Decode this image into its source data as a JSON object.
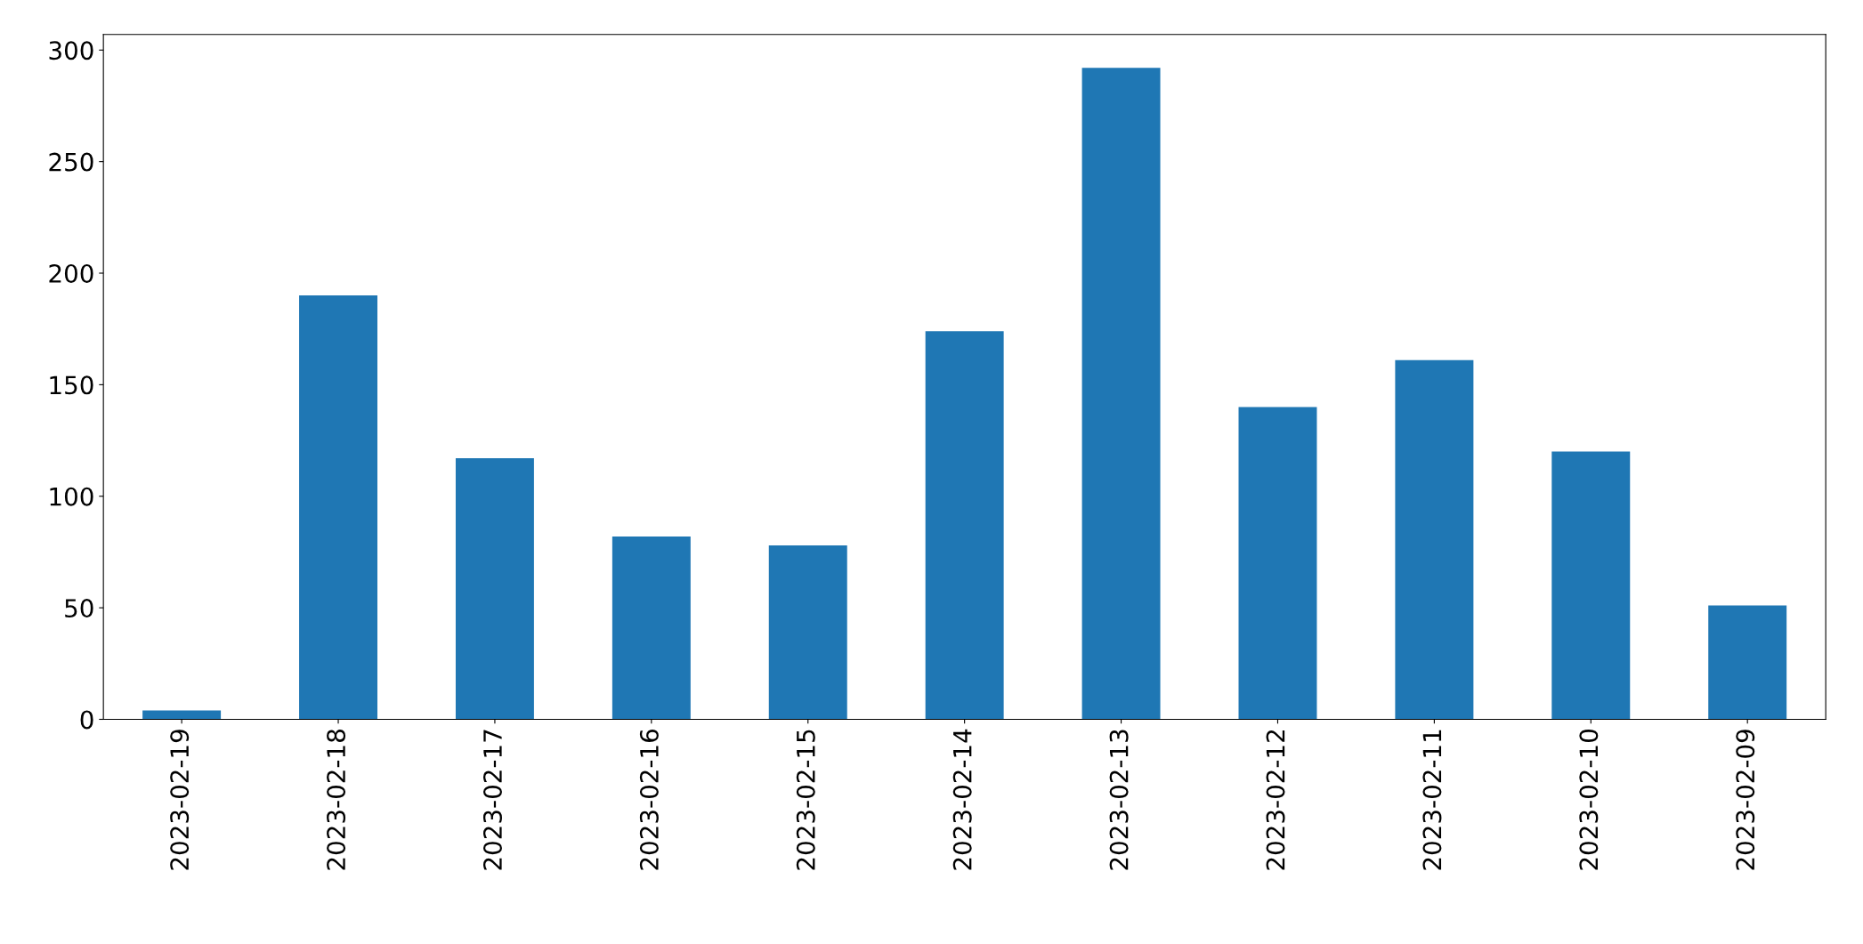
{
  "chart_data": {
    "type": "bar",
    "categories": [
      "2023-02-19",
      "2023-02-18",
      "2023-02-17",
      "2023-02-16",
      "2023-02-15",
      "2023-02-14",
      "2023-02-13",
      "2023-02-12",
      "2023-02-11",
      "2023-02-10",
      "2023-02-09"
    ],
    "values": [
      4,
      190,
      117,
      82,
      78,
      174,
      292,
      140,
      161,
      120,
      51
    ],
    "color": "#1f77b4",
    "ylim": [
      0,
      307
    ],
    "yticks": [
      0,
      50,
      100,
      150,
      200,
      250,
      300
    ],
    "grid": false,
    "legend": false
  }
}
